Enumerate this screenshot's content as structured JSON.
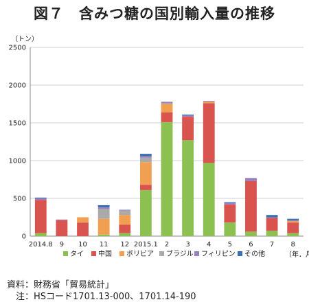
{
  "title": "図７　含みつ糖の国別輸入量の推移",
  "chart_data": {
    "type": "bar",
    "stacked": true,
    "unit_label": "（トン）",
    "x_axis_label": "（年．月）",
    "categories": [
      "2014.8",
      "9",
      "10",
      "11",
      "12",
      "2015.1",
      "2",
      "3",
      "4",
      "5",
      "6",
      "7",
      "8"
    ],
    "ylim": [
      0,
      2500
    ],
    "yticks": [
      0,
      500,
      1000,
      1500,
      2000,
      2500
    ],
    "grid": true,
    "legend_position": "bottom",
    "series": [
      {
        "name": "タイ",
        "color": "#8cc152",
        "values": [
          40,
          0,
          0,
          20,
          40,
          610,
          1510,
          1270,
          970,
          180,
          60,
          70,
          40
        ]
      },
      {
        "name": "中国",
        "color": "#d9534f",
        "values": [
          440,
          210,
          180,
          0,
          110,
          70,
          130,
          310,
          790,
          240,
          670,
          170,
          140
        ]
      },
      {
        "name": "ボリビア",
        "color": "#f0a050",
        "values": [
          0,
          0,
          70,
          210,
          130,
          300,
          110,
          0,
          20,
          0,
          0,
          0,
          20
        ]
      },
      {
        "name": "ブラジル",
        "color": "#aaaaaa",
        "values": [
          0,
          0,
          0,
          130,
          60,
          60,
          10,
          0,
          0,
          0,
          0,
          0,
          0
        ]
      },
      {
        "name": "フィリピン",
        "color": "#9b80c0",
        "values": [
          20,
          10,
          0,
          20,
          10,
          20,
          20,
          20,
          10,
          20,
          40,
          10,
          10
        ]
      },
      {
        "name": "その他",
        "color": "#3a6fb0",
        "values": [
          10,
          0,
          0,
          30,
          0,
          30,
          0,
          10,
          0,
          10,
          0,
          30,
          20
        ]
      }
    ]
  },
  "source": {
    "line1": "資料：財務省「貿易統計」",
    "line2": "　注：HSコード1701.13-000、1701.14-190"
  }
}
